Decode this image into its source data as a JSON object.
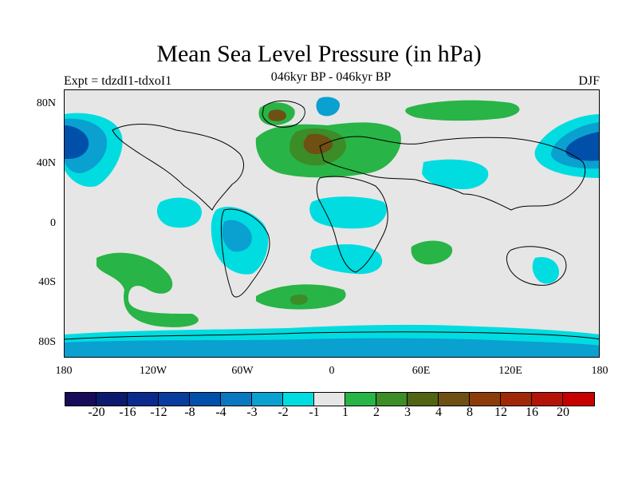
{
  "title": "Mean Sea Level Pressure (in hPa)",
  "subtitle": "046kyr BP - 046kyr BP",
  "left_label": "Expt = tdzdI1-tdxoI1",
  "right_label": "DJF",
  "y_ticks": [
    "80N",
    "40N",
    "0",
    "40S",
    "80S"
  ],
  "x_ticks": [
    "180",
    "120W",
    "60W",
    "0",
    "60E",
    "120E",
    "180"
  ],
  "colorbar": {
    "colors": [
      "#1a0a5a",
      "#0c1a6e",
      "#0a2a8c",
      "#0a3c9e",
      "#0050aa",
      "#0a78c0",
      "#0aa0d0",
      "#00dce0",
      "#e6e6e6",
      "#28b446",
      "#3c8c28",
      "#506414",
      "#6e5014",
      "#8c3c0a",
      "#a02808",
      "#b41408",
      "#c80000"
    ],
    "labels": [
      "-20",
      "-16",
      "-12",
      "-8",
      "-4",
      "-3",
      "-2",
      "-1",
      "1",
      "2",
      "3",
      "4",
      "8",
      "12",
      "16",
      "20"
    ]
  },
  "colors": {
    "neutral": "#e6e6e6",
    "neg1": "#00dce0",
    "neg2": "#0aa0d0",
    "neg3": "#0a78c0",
    "neg4": "#0050aa",
    "neg8": "#0a3c9e",
    "pos1": "#28b446",
    "pos2": "#3c8c28",
    "pos4": "#6e5014"
  }
}
